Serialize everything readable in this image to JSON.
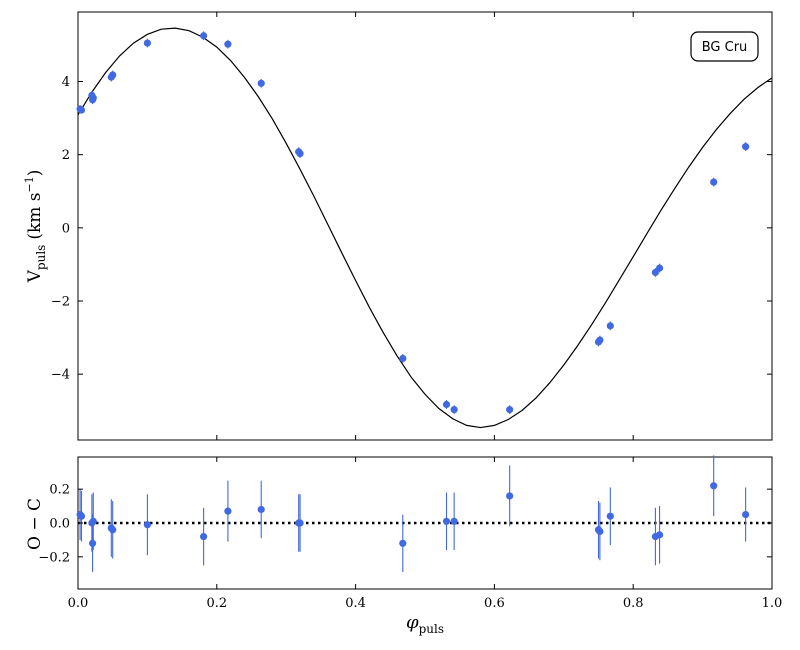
{
  "chart_data": [
    {
      "type": "scatter",
      "panel": "top",
      "title": "",
      "annotation": "BG Cru",
      "xlabel": "",
      "ylabel_main": "V",
      "ylabel_sub": "puls",
      "ylabel_unit": "(km s",
      "ylabel_exp": "−1",
      "ylabel_close": ")",
      "xlim": [
        0.0,
        1.0
      ],
      "ylim": [
        -5.8,
        5.9
      ],
      "yticks": [
        -4,
        -2,
        0,
        2,
        4
      ],
      "ytick_labels": [
        "−4",
        "−2",
        "0",
        "2",
        "4"
      ],
      "grid": false,
      "series": [
        {
          "kind": "points",
          "color": "#4169e1",
          "x": [
            0.003,
            0.005,
            0.02,
            0.021,
            0.022,
            0.048,
            0.05,
            0.1,
            0.181,
            0.216,
            0.264,
            0.318,
            0.32,
            0.468,
            0.531,
            0.542,
            0.622,
            0.75,
            0.752,
            0.767,
            0.832,
            0.838,
            0.916,
            0.962
          ],
          "y": [
            3.25,
            3.22,
            3.62,
            3.5,
            3.55,
            4.12,
            4.18,
            5.05,
            5.25,
            5.02,
            3.95,
            2.08,
            2.03,
            -3.57,
            -4.83,
            -4.97,
            -4.97,
            -3.12,
            -3.07,
            -2.68,
            -1.22,
            -1.1,
            1.25,
            2.22
          ],
          "yerr": [
            0.1,
            0.1,
            0.12,
            0.12,
            0.12,
            0.12,
            0.12,
            0.12,
            0.12,
            0.12,
            0.12,
            0.12,
            0.12,
            0.12,
            0.12,
            0.12,
            0.12,
            0.12,
            0.12,
            0.12,
            0.12,
            0.12,
            0.12,
            0.12
          ]
        },
        {
          "kind": "model",
          "color": "#000000",
          "x": [
            0.0,
            0.02,
            0.04,
            0.06,
            0.08,
            0.1,
            0.12,
            0.14,
            0.16,
            0.18,
            0.2,
            0.22,
            0.24,
            0.26,
            0.28,
            0.3,
            0.32,
            0.34,
            0.36,
            0.38,
            0.4,
            0.42,
            0.44,
            0.46,
            0.48,
            0.5,
            0.52,
            0.54,
            0.56,
            0.58,
            0.6,
            0.62,
            0.64,
            0.66,
            0.68,
            0.7,
            0.72,
            0.74,
            0.76,
            0.78,
            0.8,
            0.82,
            0.84,
            0.86,
            0.88,
            0.9,
            0.92,
            0.94,
            0.96,
            0.98,
            1.0
          ],
          "y": [
            3.09,
            3.71,
            4.25,
            4.7,
            5.05,
            5.29,
            5.43,
            5.46,
            5.39,
            5.21,
            4.94,
            4.57,
            4.11,
            3.58,
            2.98,
            2.31,
            1.6,
            0.86,
            0.09,
            -0.68,
            -1.44,
            -2.18,
            -2.87,
            -3.51,
            -4.08,
            -4.55,
            -4.94,
            -5.22,
            -5.4,
            -5.46,
            -5.4,
            -5.24,
            -4.99,
            -4.65,
            -4.23,
            -3.75,
            -3.22,
            -2.65,
            -2.05,
            -1.42,
            -0.79,
            -0.15,
            0.48,
            1.08,
            1.66,
            2.2,
            2.69,
            3.13,
            3.52,
            3.84,
            4.1
          ]
        }
      ]
    },
    {
      "type": "scatter",
      "panel": "bottom",
      "title": "",
      "xlabel_main": "φ",
      "xlabel_sub": "puls",
      "ylabel": "O − C",
      "xlim": [
        0.0,
        1.0
      ],
      "ylim": [
        -0.39,
        0.39
      ],
      "xticks": [
        0.0,
        0.2,
        0.4,
        0.6,
        0.8,
        1.0
      ],
      "xtick_labels": [
        "0.0",
        "0.2",
        "0.4",
        "0.6",
        "0.8",
        "1.0"
      ],
      "yticks": [
        -0.2,
        0.0,
        0.2
      ],
      "ytick_labels": [
        "−0.2",
        "0.0",
        "0.2"
      ],
      "reference_line": 0.0,
      "grid": false,
      "series": [
        {
          "kind": "points",
          "color": "#4169e1",
          "x": [
            0.003,
            0.005,
            0.02,
            0.021,
            0.022,
            0.048,
            0.05,
            0.1,
            0.181,
            0.216,
            0.264,
            0.318,
            0.32,
            0.468,
            0.531,
            0.542,
            0.622,
            0.75,
            0.752,
            0.767,
            0.832,
            0.838,
            0.916,
            0.962
          ],
          "y": [
            0.05,
            0.04,
            0.0,
            -0.12,
            0.01,
            -0.03,
            -0.04,
            -0.01,
            -0.08,
            0.07,
            0.08,
            0.0,
            0.0,
            -0.12,
            0.01,
            0.01,
            0.16,
            -0.04,
            -0.05,
            0.04,
            -0.08,
            -0.07,
            0.22,
            0.05
          ],
          "yerr": [
            0.15,
            0.15,
            0.17,
            0.17,
            0.17,
            0.17,
            0.17,
            0.18,
            0.17,
            0.18,
            0.17,
            0.17,
            0.17,
            0.17,
            0.17,
            0.17,
            0.18,
            0.17,
            0.17,
            0.17,
            0.17,
            0.17,
            0.18,
            0.16
          ]
        }
      ]
    }
  ]
}
